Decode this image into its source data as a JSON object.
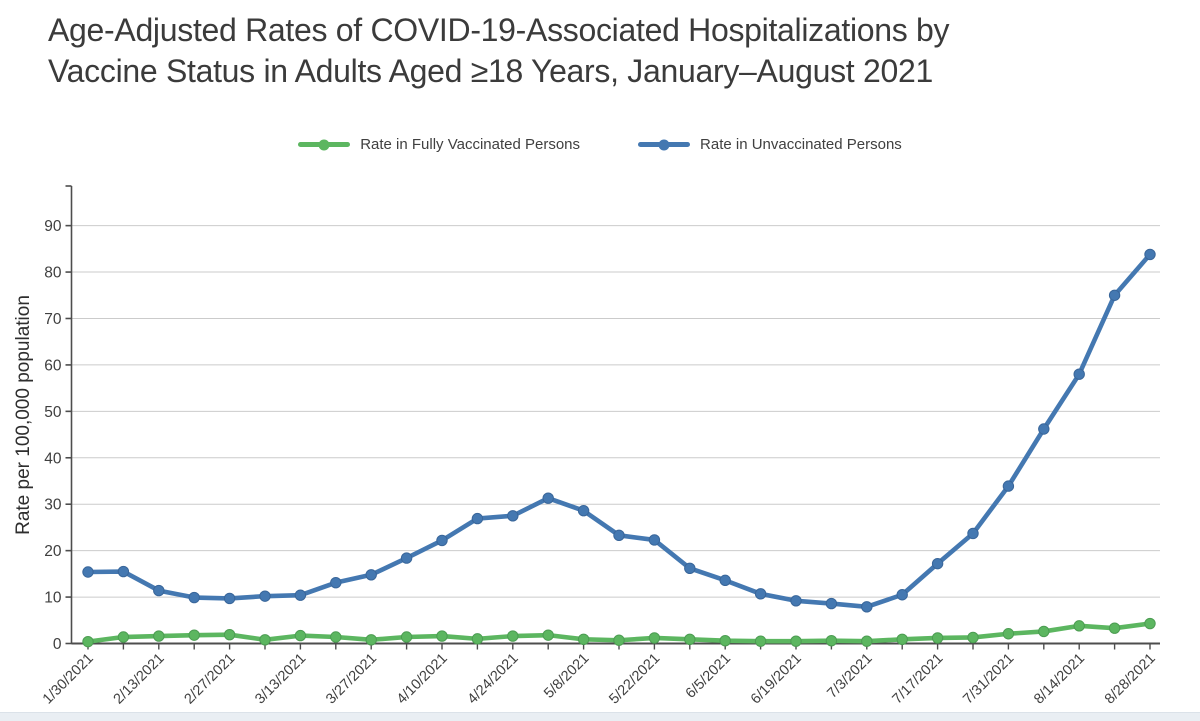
{
  "title": {
    "lines": [
      "Age-Adjusted Rates of COVID-19-Associated Hospitalizations by",
      "Vaccine Status in Adults Aged ≥18 Years, January–August 2021"
    ],
    "full": "Age-Adjusted Rates of COVID-19-Associated Hospitalizations by Vaccine Status in Adults Aged ≥18 Years, January–August 2021"
  },
  "legend": [
    {
      "label": "Rate in Fully Vaccinated Persons",
      "color": "#5cb660"
    },
    {
      "label": "Rate in Unvaccinated Persons",
      "color": "#4478b1"
    }
  ],
  "colors": {
    "vaccinated_green": "#5cb660",
    "vaccinated_green_dark": "#4c9c52",
    "unvaccinated_blue": "#4478b1",
    "unvaccinated_blue_dark": "#39669a",
    "gridline": "#cbcbcb",
    "axis": "#4d4d4d",
    "tick_text": "#3f3f3f",
    "title_text": "#3b3b3b"
  },
  "chart_data": {
    "type": "line",
    "title": "Age-Adjusted Rates of COVID-19-Associated Hospitalizations by Vaccine Status in Adults Aged ≥18 Years, January–August 2021",
    "ylabel": "Rate per 100,000 population",
    "xlabel": "",
    "ylim": [
      0,
      98
    ],
    "yticks": [
      0,
      10,
      20,
      30,
      40,
      50,
      60,
      70,
      80,
      90
    ],
    "grid": "horizontal",
    "legend_position": "top",
    "x": [
      "1/30/2021",
      "2/6/2021",
      "2/13/2021",
      "2/20/2021",
      "2/27/2021",
      "3/6/2021",
      "3/13/2021",
      "3/20/2021",
      "3/27/2021",
      "4/3/2021",
      "4/10/2021",
      "4/17/2021",
      "4/24/2021",
      "5/1/2021",
      "5/8/2021",
      "5/15/2021",
      "5/22/2021",
      "5/29/2021",
      "6/5/2021",
      "6/12/2021",
      "6/19/2021",
      "6/26/2021",
      "7/3/2021",
      "7/10/2021",
      "7/17/2021",
      "7/24/2021",
      "7/31/2021",
      "8/7/2021",
      "8/14/2021",
      "8/21/2021",
      "8/28/2021"
    ],
    "x_tick_labels": [
      "1/30/2021",
      "2/13/2021",
      "2/27/2021",
      "3/13/2021",
      "3/27/2021",
      "4/10/2021",
      "4/24/2021",
      "5/8/2021",
      "5/22/2021",
      "6/5/2021",
      "6/19/2021",
      "7/3/2021",
      "7/17/2021",
      "7/31/2021",
      "8/14/2021",
      "8/28/2021"
    ],
    "series": [
      {
        "name": "Rate in Fully Vaccinated Persons",
        "color": "#5cb660",
        "values": [
          0.4,
          1.4,
          1.6,
          1.8,
          1.9,
          0.8,
          1.7,
          1.4,
          0.8,
          1.4,
          1.6,
          1.0,
          1.6,
          1.8,
          0.9,
          0.7,
          1.2,
          0.9,
          0.6,
          0.5,
          0.5,
          0.6,
          0.5,
          0.9,
          1.2,
          1.3,
          2.1,
          2.6,
          3.8,
          3.3,
          4.3
        ]
      },
      {
        "name": "Rate in Unvaccinated Persons",
        "color": "#4478b1",
        "values": [
          15.4,
          15.5,
          11.4,
          9.9,
          9.7,
          10.2,
          10.4,
          13.1,
          14.8,
          18.4,
          22.2,
          26.9,
          27.5,
          31.3,
          28.6,
          23.3,
          22.3,
          16.2,
          13.6,
          10.7,
          9.2,
          8.6,
          7.9,
          10.5,
          17.2,
          23.7,
          33.9,
          46.2,
          58.0,
          75.0,
          83.8
        ]
      }
    ]
  }
}
